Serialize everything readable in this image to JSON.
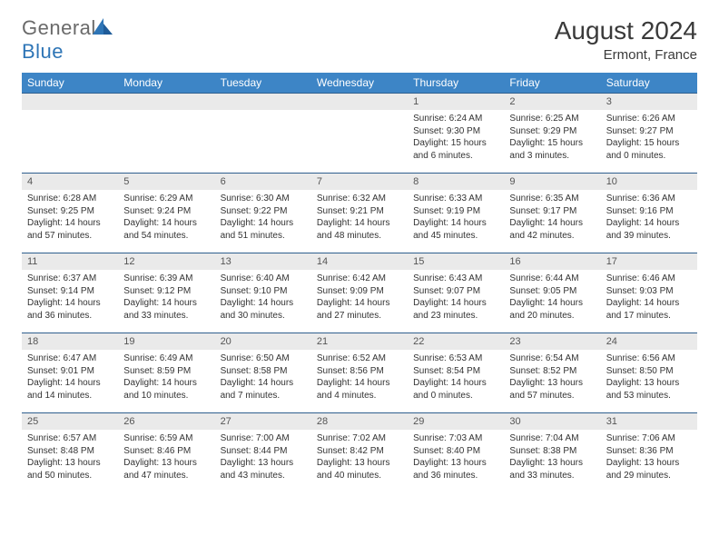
{
  "brand": {
    "part1": "General",
    "part2": "Blue"
  },
  "header": {
    "title": "August 2024",
    "location": "Ermont, France"
  },
  "colors": {
    "header_bg": "#3d85c6",
    "header_text": "#ffffff",
    "row_border": "#2f5f8f",
    "daynum_bg": "#eaeaea",
    "logo_gray": "#6a6a6a",
    "logo_blue": "#2e75b6",
    "text": "#333333"
  },
  "weekdays": [
    "Sunday",
    "Monday",
    "Tuesday",
    "Wednesday",
    "Thursday",
    "Friday",
    "Saturday"
  ],
  "layout": {
    "first_weekday_index": 4,
    "days_in_month": 31
  },
  "days": {
    "1": {
      "sunrise": "Sunrise: 6:24 AM",
      "sunset": "Sunset: 9:30 PM",
      "daylight": "Daylight: 15 hours and 6 minutes."
    },
    "2": {
      "sunrise": "Sunrise: 6:25 AM",
      "sunset": "Sunset: 9:29 PM",
      "daylight": "Daylight: 15 hours and 3 minutes."
    },
    "3": {
      "sunrise": "Sunrise: 6:26 AM",
      "sunset": "Sunset: 9:27 PM",
      "daylight": "Daylight: 15 hours and 0 minutes."
    },
    "4": {
      "sunrise": "Sunrise: 6:28 AM",
      "sunset": "Sunset: 9:25 PM",
      "daylight": "Daylight: 14 hours and 57 minutes."
    },
    "5": {
      "sunrise": "Sunrise: 6:29 AM",
      "sunset": "Sunset: 9:24 PM",
      "daylight": "Daylight: 14 hours and 54 minutes."
    },
    "6": {
      "sunrise": "Sunrise: 6:30 AM",
      "sunset": "Sunset: 9:22 PM",
      "daylight": "Daylight: 14 hours and 51 minutes."
    },
    "7": {
      "sunrise": "Sunrise: 6:32 AM",
      "sunset": "Sunset: 9:21 PM",
      "daylight": "Daylight: 14 hours and 48 minutes."
    },
    "8": {
      "sunrise": "Sunrise: 6:33 AM",
      "sunset": "Sunset: 9:19 PM",
      "daylight": "Daylight: 14 hours and 45 minutes."
    },
    "9": {
      "sunrise": "Sunrise: 6:35 AM",
      "sunset": "Sunset: 9:17 PM",
      "daylight": "Daylight: 14 hours and 42 minutes."
    },
    "10": {
      "sunrise": "Sunrise: 6:36 AM",
      "sunset": "Sunset: 9:16 PM",
      "daylight": "Daylight: 14 hours and 39 minutes."
    },
    "11": {
      "sunrise": "Sunrise: 6:37 AM",
      "sunset": "Sunset: 9:14 PM",
      "daylight": "Daylight: 14 hours and 36 minutes."
    },
    "12": {
      "sunrise": "Sunrise: 6:39 AM",
      "sunset": "Sunset: 9:12 PM",
      "daylight": "Daylight: 14 hours and 33 minutes."
    },
    "13": {
      "sunrise": "Sunrise: 6:40 AM",
      "sunset": "Sunset: 9:10 PM",
      "daylight": "Daylight: 14 hours and 30 minutes."
    },
    "14": {
      "sunrise": "Sunrise: 6:42 AM",
      "sunset": "Sunset: 9:09 PM",
      "daylight": "Daylight: 14 hours and 27 minutes."
    },
    "15": {
      "sunrise": "Sunrise: 6:43 AM",
      "sunset": "Sunset: 9:07 PM",
      "daylight": "Daylight: 14 hours and 23 minutes."
    },
    "16": {
      "sunrise": "Sunrise: 6:44 AM",
      "sunset": "Sunset: 9:05 PM",
      "daylight": "Daylight: 14 hours and 20 minutes."
    },
    "17": {
      "sunrise": "Sunrise: 6:46 AM",
      "sunset": "Sunset: 9:03 PM",
      "daylight": "Daylight: 14 hours and 17 minutes."
    },
    "18": {
      "sunrise": "Sunrise: 6:47 AM",
      "sunset": "Sunset: 9:01 PM",
      "daylight": "Daylight: 14 hours and 14 minutes."
    },
    "19": {
      "sunrise": "Sunrise: 6:49 AM",
      "sunset": "Sunset: 8:59 PM",
      "daylight": "Daylight: 14 hours and 10 minutes."
    },
    "20": {
      "sunrise": "Sunrise: 6:50 AM",
      "sunset": "Sunset: 8:58 PM",
      "daylight": "Daylight: 14 hours and 7 minutes."
    },
    "21": {
      "sunrise": "Sunrise: 6:52 AM",
      "sunset": "Sunset: 8:56 PM",
      "daylight": "Daylight: 14 hours and 4 minutes."
    },
    "22": {
      "sunrise": "Sunrise: 6:53 AM",
      "sunset": "Sunset: 8:54 PM",
      "daylight": "Daylight: 14 hours and 0 minutes."
    },
    "23": {
      "sunrise": "Sunrise: 6:54 AM",
      "sunset": "Sunset: 8:52 PM",
      "daylight": "Daylight: 13 hours and 57 minutes."
    },
    "24": {
      "sunrise": "Sunrise: 6:56 AM",
      "sunset": "Sunset: 8:50 PM",
      "daylight": "Daylight: 13 hours and 53 minutes."
    },
    "25": {
      "sunrise": "Sunrise: 6:57 AM",
      "sunset": "Sunset: 8:48 PM",
      "daylight": "Daylight: 13 hours and 50 minutes."
    },
    "26": {
      "sunrise": "Sunrise: 6:59 AM",
      "sunset": "Sunset: 8:46 PM",
      "daylight": "Daylight: 13 hours and 47 minutes."
    },
    "27": {
      "sunrise": "Sunrise: 7:00 AM",
      "sunset": "Sunset: 8:44 PM",
      "daylight": "Daylight: 13 hours and 43 minutes."
    },
    "28": {
      "sunrise": "Sunrise: 7:02 AM",
      "sunset": "Sunset: 8:42 PM",
      "daylight": "Daylight: 13 hours and 40 minutes."
    },
    "29": {
      "sunrise": "Sunrise: 7:03 AM",
      "sunset": "Sunset: 8:40 PM",
      "daylight": "Daylight: 13 hours and 36 minutes."
    },
    "30": {
      "sunrise": "Sunrise: 7:04 AM",
      "sunset": "Sunset: 8:38 PM",
      "daylight": "Daylight: 13 hours and 33 minutes."
    },
    "31": {
      "sunrise": "Sunrise: 7:06 AM",
      "sunset": "Sunset: 8:36 PM",
      "daylight": "Daylight: 13 hours and 29 minutes."
    }
  }
}
